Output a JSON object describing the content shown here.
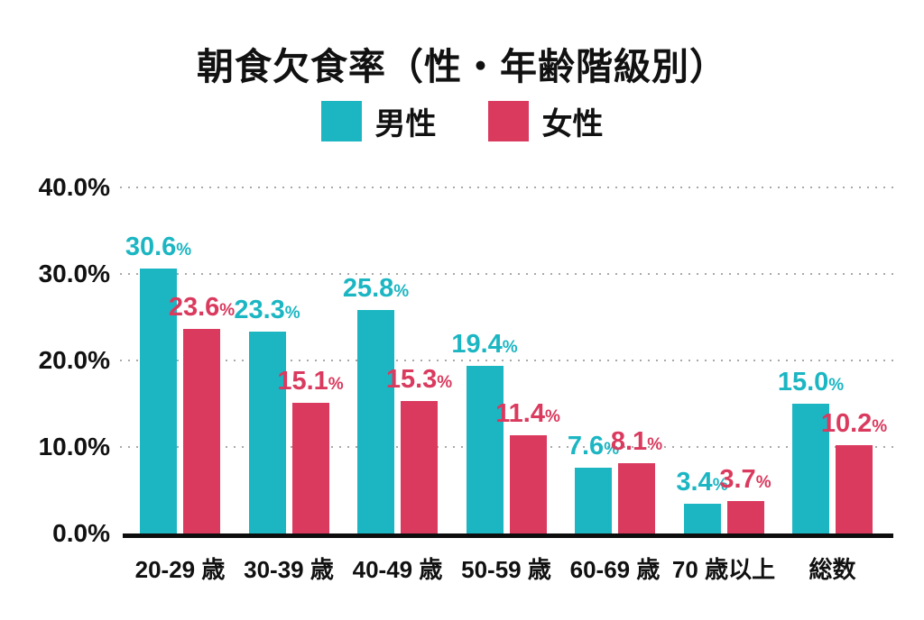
{
  "chart": {
    "title": "朝食欠食率（性・年齢階級別）"
  },
  "chart_data": {
    "type": "bar",
    "title": "朝食欠食率（性・年齢階級別）",
    "categories": [
      "20-29 歳",
      "30-39 歳",
      "40-49 歳",
      "50-59 歳",
      "60-69 歳",
      "70 歳以上",
      "総数"
    ],
    "series": [
      {
        "name": "男性",
        "color": "#1cb6c3",
        "values": [
          30.6,
          23.3,
          25.8,
          19.4,
          7.6,
          3.4,
          15.0
        ]
      },
      {
        "name": "女性",
        "color": "#da3a5e",
        "values": [
          23.6,
          15.1,
          15.3,
          11.4,
          8.1,
          3.7,
          10.2
        ]
      }
    ],
    "value_suffix": "%",
    "xlabel": "",
    "ylabel": "",
    "ylim": [
      0,
      40
    ],
    "yticks": [
      {
        "value": 0,
        "label": "0.0%"
      },
      {
        "value": 10,
        "label": "10.0%"
      },
      {
        "value": 20,
        "label": "20.0%"
      },
      {
        "value": 30,
        "label": "30.0%"
      },
      {
        "value": 40,
        "label": "40.0%"
      }
    ],
    "grid": "horizontal-dotted",
    "legend_position": "top-center"
  }
}
